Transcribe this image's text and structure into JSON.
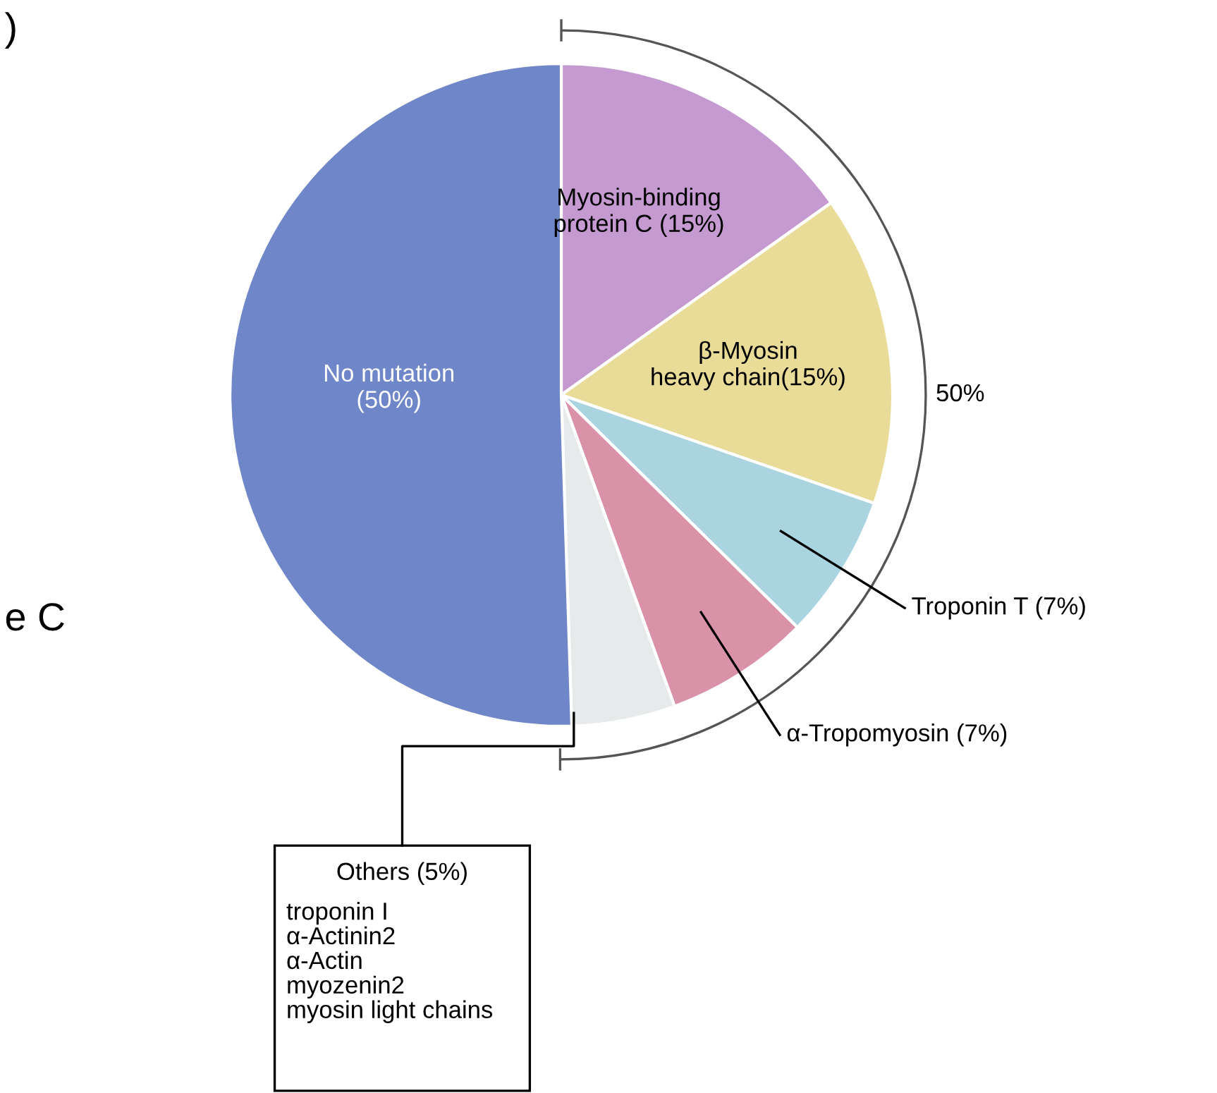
{
  "chart_data": {
    "type": "pie",
    "categories": [
      "Myosin-binding\nprotein C (15%)",
      "β-Myosin\nheavy chain(15%)",
      "Troponin T (7%)",
      "α-Tropomyosin (7%)",
      "Others (5%)",
      "No mutation\n(50%)"
    ],
    "values": [
      15,
      15,
      7,
      7,
      5,
      50
    ],
    "colors": [
      "#c49ad0",
      "#e8dc98",
      "#a9d4e0",
      "#d992a8",
      "#e6eaea",
      "#6f86c8"
    ],
    "annotations": [
      "50%",
      "troponin I\nα-Actinin2\nα-Actin\nmyozenin2\nmyosin light chains",
      ")",
      "e C"
    ]
  }
}
